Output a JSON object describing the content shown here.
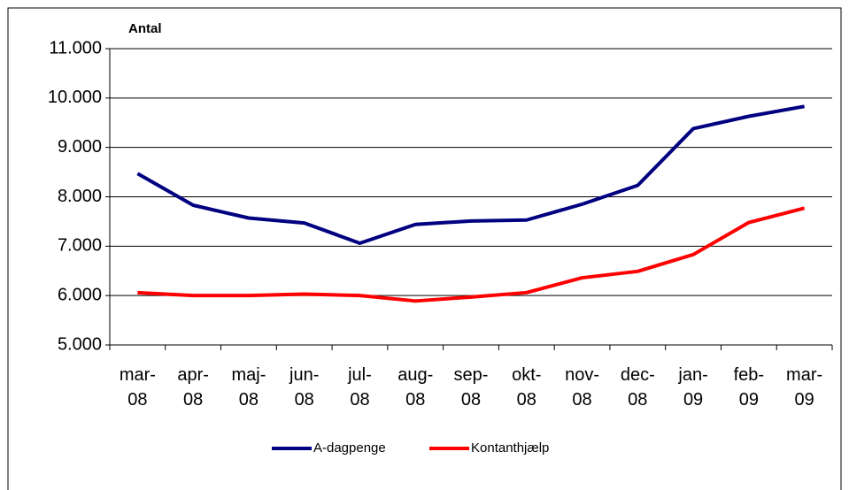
{
  "chart_data": {
    "type": "line",
    "ylabel": "Antal",
    "categories": [
      "mar-08",
      "apr-08",
      "maj-08",
      "jun-08",
      "jul-08",
      "aug-08",
      "sep-08",
      "okt-08",
      "nov-08",
      "dec-08",
      "jan-09",
      "feb-09",
      "mar-09"
    ],
    "series": [
      {
        "name": "A-dagpenge",
        "color": "#000080",
        "values": [
          8470,
          7830,
          7570,
          7470,
          7060,
          7440,
          7510,
          7530,
          7850,
          8230,
          9380,
          9630,
          9830
        ]
      },
      {
        "name": "Kontanthjælp",
        "color": "#ff0000",
        "values": [
          6060,
          6000,
          6000,
          6030,
          6000,
          5890,
          5970,
          6060,
          6360,
          6490,
          6830,
          7480,
          7770
        ]
      }
    ],
    "ylim": [
      5000,
      11000
    ],
    "yticks": [
      {
        "value": 5000,
        "label": "5.000"
      },
      {
        "value": 6000,
        "label": "6.000"
      },
      {
        "value": 7000,
        "label": "7.000"
      },
      {
        "value": 8000,
        "label": "8.000"
      },
      {
        "value": 9000,
        "label": "9.000"
      },
      {
        "value": 10000,
        "label": "10.000"
      },
      {
        "value": 11000,
        "label": "11.000"
      }
    ],
    "grid": true,
    "legend": "bottom"
  }
}
